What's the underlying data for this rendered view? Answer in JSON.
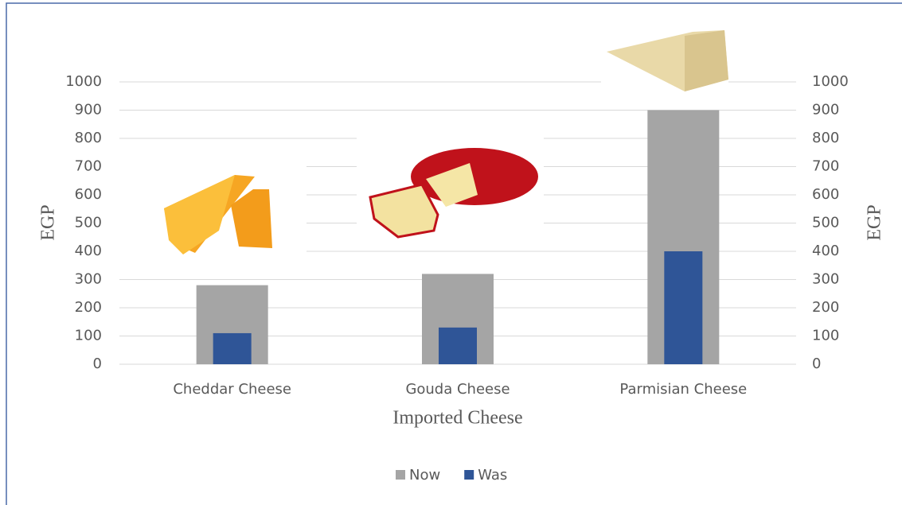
{
  "chart_data": {
    "type": "bar",
    "categories": [
      "Cheddar Cheese",
      "Gouda Cheese",
      "Parmisian Cheese"
    ],
    "series": [
      {
        "name": "Now",
        "color": "#a5a5a5",
        "values": [
          280,
          320,
          900
        ]
      },
      {
        "name": "Was",
        "color": "#2f5597",
        "values": [
          110,
          130,
          400
        ]
      }
    ],
    "ylim": [
      0,
      1000
    ],
    "yticks": [
      0,
      100,
      200,
      300,
      400,
      500,
      600,
      700,
      800,
      900,
      1000
    ],
    "y2lim": [
      0,
      1000
    ],
    "y2ticks": [
      0,
      100,
      200,
      300,
      400,
      500,
      600,
      700,
      800,
      900,
      1000
    ],
    "y_label": "EGP",
    "y2_label": "EGP",
    "x_label": "Imported Cheese",
    "grid": true,
    "legend": "bottom"
  }
}
